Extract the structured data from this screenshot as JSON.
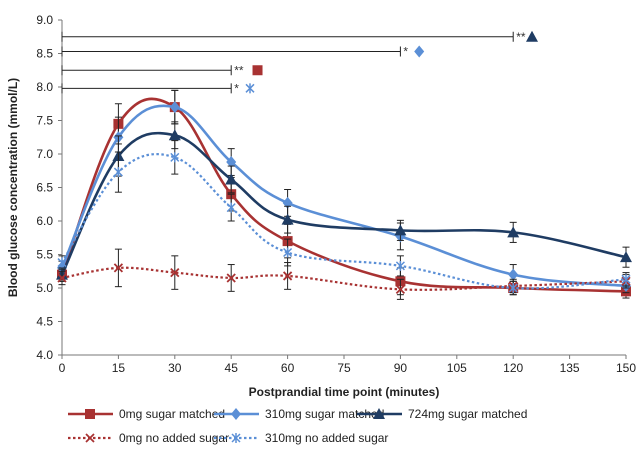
{
  "chart_data": {
    "type": "line",
    "xlabel": "Postprandial time point (minutes)",
    "ylabel": "Blood glucose concentration (mmol/L)",
    "xlim": [
      0,
      150
    ],
    "ylim": [
      4.0,
      9.0
    ],
    "x_ticks": [
      "0",
      "15",
      "30",
      "45",
      "60",
      "75",
      "90",
      "105",
      "120",
      "135",
      "150"
    ],
    "y_ticks": [
      "4.0",
      "4.5",
      "5.0",
      "5.5",
      "6.0",
      "6.5",
      "7.0",
      "7.5",
      "8.0",
      "8.5",
      "9.0"
    ],
    "x": [
      0,
      15,
      30,
      45,
      60,
      90,
      120,
      150
    ],
    "grid": false,
    "legend_position": "bottom",
    "series": [
      {
        "name": "0mg sugar matched",
        "marker": "square",
        "line": "solid",
        "color": "#a83232",
        "values": [
          5.2,
          7.45,
          7.7,
          6.4,
          5.7,
          5.1,
          5.0,
          4.95
        ],
        "errors": [
          0.1,
          0.3,
          0.25,
          0.25,
          0.25,
          0.2,
          0.1,
          0.1
        ]
      },
      {
        "name": "310mg sugar matched",
        "marker": "diamond",
        "line": "solid",
        "color": "#5b8fd6",
        "values": [
          5.3,
          7.25,
          7.7,
          6.88,
          6.27,
          5.77,
          5.2,
          5.03
        ],
        "errors": [
          0.1,
          0.3,
          0.25,
          0.2,
          0.2,
          0.2,
          0.15,
          0.1
        ]
      },
      {
        "name": "724mg sugar matched",
        "marker": "triangle",
        "line": "solid",
        "color": "#1f3c63",
        "values": [
          5.2,
          6.97,
          7.28,
          6.62,
          6.02,
          5.86,
          5.83,
          5.46
        ],
        "errors": [
          0.1,
          0.3,
          0.2,
          0.2,
          0.2,
          0.15,
          0.15,
          0.15
        ]
      },
      {
        "name": "0mg no added sugar",
        "marker": "x",
        "line": "dotted",
        "color": "#a83232",
        "values": [
          5.15,
          5.3,
          5.23,
          5.15,
          5.18,
          4.98,
          5.03,
          5.1
        ],
        "errors": [
          0.1,
          0.28,
          0.25,
          0.2,
          0.2,
          0.15,
          0.1,
          0.1
        ]
      },
      {
        "name": "310mg no added sugar",
        "marker": "asterisk",
        "line": "dotted",
        "color": "#5b8fd6",
        "values": [
          5.38,
          6.73,
          6.95,
          6.2,
          5.53,
          5.33,
          5.0,
          5.13
        ],
        "errors": [
          0.1,
          0.3,
          0.25,
          0.2,
          0.2,
          0.15,
          0.1,
          0.1
        ]
      }
    ],
    "significance": [
      {
        "x_start": 0,
        "x_end": 120,
        "y": 8.75,
        "label": "**",
        "marker": "triangle",
        "color": "#1f3c63",
        "marker_x": 125
      },
      {
        "x_start": 0,
        "x_end": 90,
        "y": 8.53,
        "label": "*",
        "marker": "diamond",
        "color": "#5b8fd6",
        "marker_x": 95
      },
      {
        "x_start": 0,
        "x_end": 45,
        "y": 8.25,
        "label": "**",
        "marker": "square",
        "color": "#a83232",
        "marker_x": 52
      },
      {
        "x_start": 0,
        "x_end": 45,
        "y": 7.98,
        "label": "*",
        "marker": "asterisk",
        "color": "#5b8fd6",
        "marker_x": 50
      }
    ]
  }
}
